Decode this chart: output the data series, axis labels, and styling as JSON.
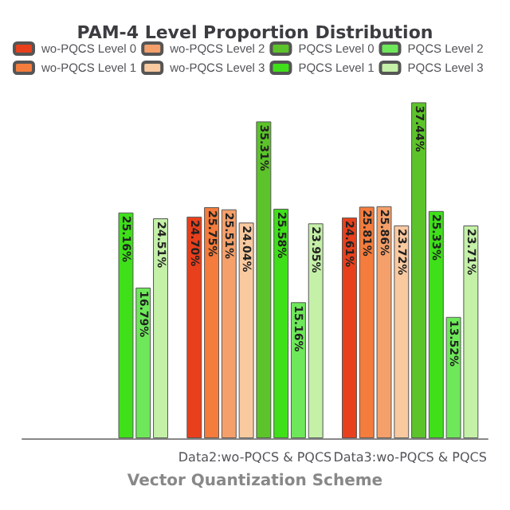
{
  "chart_data": {
    "type": "bar",
    "title": "PAM-4 Level Proportion Distribution",
    "xlabel": "Vector Quantization Scheme",
    "categories": [
      null,
      "Data2:wo-PQCS & PQCS",
      "Data3:wo-PQCS & PQCS"
    ],
    "legend": "top",
    "grid": false,
    "series": [
      {
        "name": "wo-PQCS Level 0",
        "color": "#e8401c",
        "values": [
          null,
          24.7,
          24.61
        ],
        "value_labels": [
          null,
          "24.70%",
          "24.61%"
        ]
      },
      {
        "name": "wo-PQCS Level 1",
        "color": "#f47c3c",
        "values": [
          null,
          25.75,
          25.81
        ],
        "value_labels": [
          null,
          "25.75%",
          "25.81%"
        ]
      },
      {
        "name": "wo-PQCS Level 2",
        "color": "#f5a06a",
        "values": [
          null,
          25.51,
          25.86
        ],
        "value_labels": [
          null,
          "25.51%",
          "25.86%"
        ]
      },
      {
        "name": "wo-PQCS Level 3",
        "color": "#f9c9a0",
        "values": [
          null,
          24.04,
          23.72
        ],
        "value_labels": [
          null,
          "24.04%",
          "23.72%"
        ]
      },
      {
        "name": "PQCS Level 0",
        "color": "#5cc42a",
        "values": [
          null,
          35.31,
          37.44
        ],
        "value_labels": [
          null,
          "35.31%",
          "37.44%"
        ]
      },
      {
        "name": "PQCS Level 1",
        "color": "#3fe01a",
        "values": [
          25.16,
          25.58,
          25.33
        ],
        "value_labels": [
          "25.16%",
          "25.58%",
          "25.33%"
        ]
      },
      {
        "name": "PQCS Level 2",
        "color": "#6ee85a",
        "values": [
          16.79,
          15.16,
          13.52
        ],
        "value_labels": [
          "16.79%",
          "15.16%",
          "13.52%"
        ]
      },
      {
        "name": "PQCS Level 3",
        "color": "#c4f0a8",
        "values": [
          24.51,
          23.95,
          23.71
        ],
        "value_labels": [
          "24.51%",
          "23.95%",
          "23.71%"
        ]
      }
    ]
  }
}
